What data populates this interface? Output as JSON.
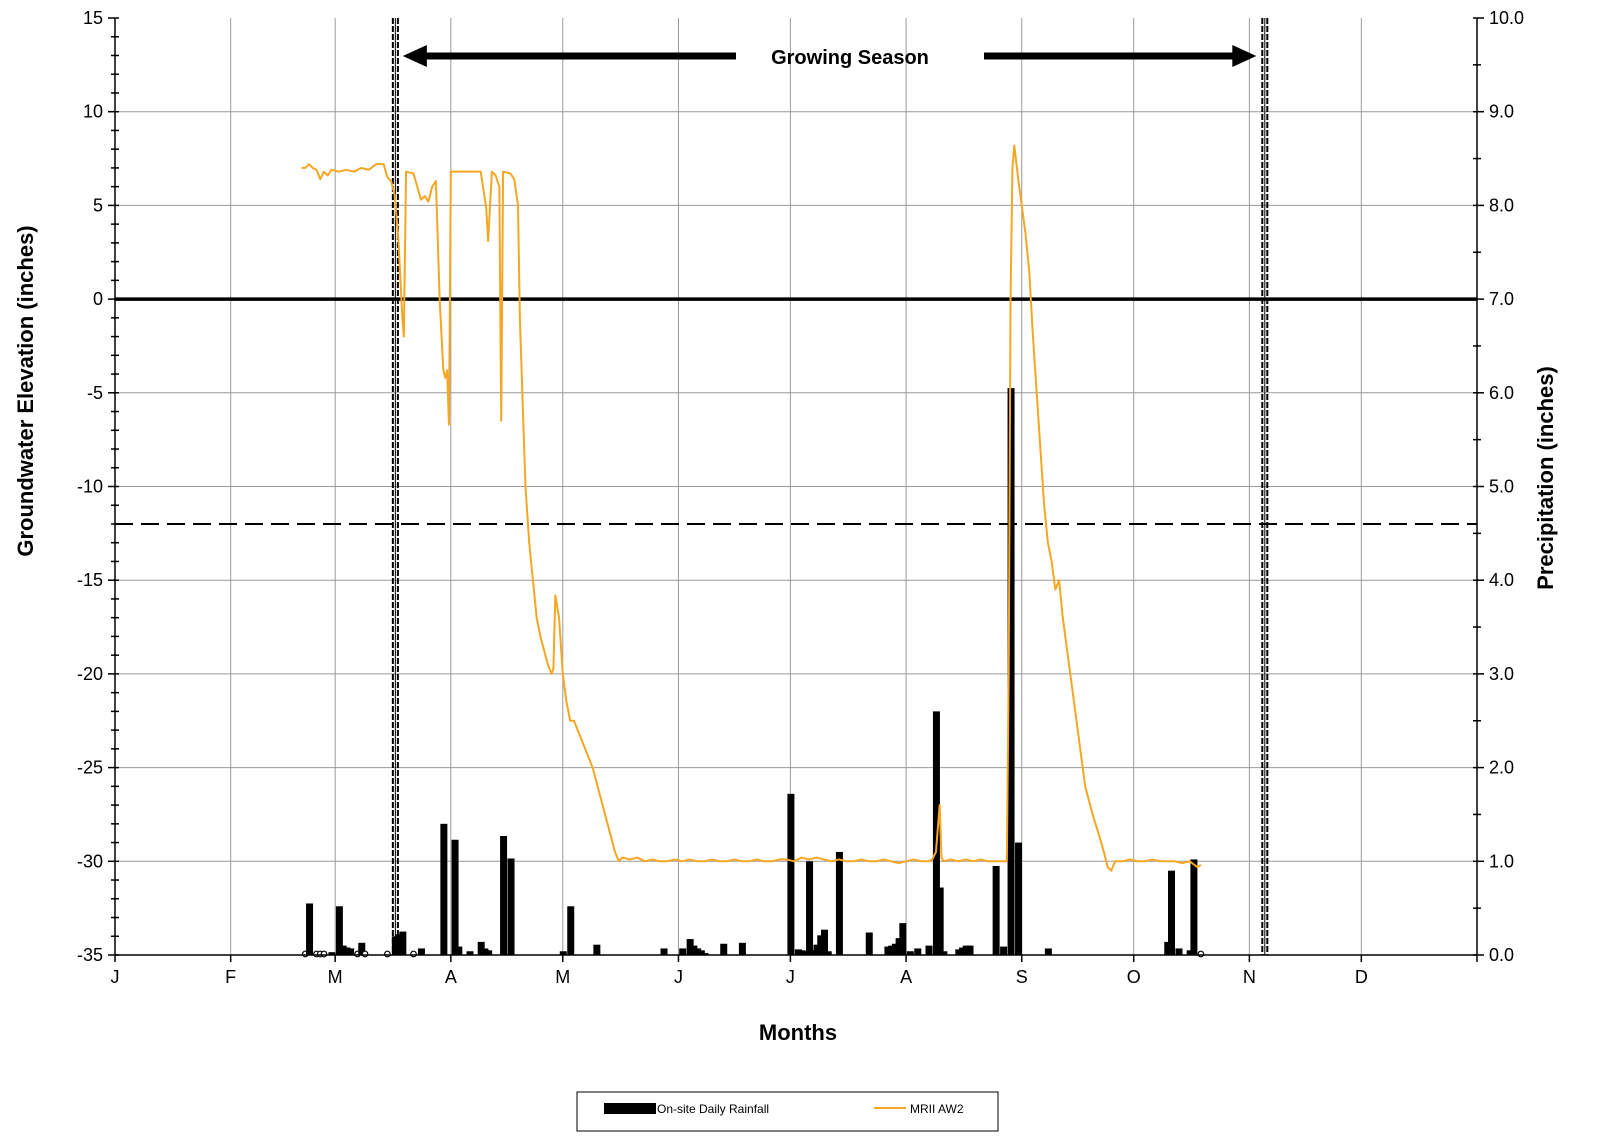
{
  "chart_data": {
    "type": "bar+line",
    "xlabel": "Months",
    "ylabel_left": "Groundwater Elevation (inches)",
    "ylabel_right": "Precipitation (inches)",
    "month_labels": [
      "J",
      "F",
      "M",
      "A",
      "M",
      "J",
      "J",
      "A",
      "S",
      "O",
      "N",
      "D"
    ],
    "left_axis": {
      "ylim": [
        -35,
        15
      ],
      "ticks": [
        "15",
        "10",
        "5",
        "0",
        "-5",
        "-10",
        "-15",
        "-20",
        "-25",
        "-30",
        "-35"
      ]
    },
    "right_axis": {
      "ylim": [
        0,
        10
      ],
      "ticks": [
        "10.0",
        "9.0",
        "8.0",
        "7.0",
        "6.0",
        "5.0",
        "4.0",
        "3.0",
        "2.0",
        "1.0",
        "0.0"
      ]
    },
    "grid": true,
    "annotation": {
      "text": "Growing Season",
      "start_day": 75,
      "end_day": 308
    },
    "reference_lines": {
      "zero": 0,
      "minus_12": -12
    },
    "growing_season_markers": [
      75,
      308
    ],
    "legend": {
      "position": "bottom-center",
      "entries": [
        {
          "label": "On-site Daily Rainfall",
          "color": "#000000"
        },
        {
          "label": "MRII AW2",
          "color": "#f5a623"
        }
      ]
    },
    "series": [
      {
        "name": "On-site Daily Rainfall",
        "type": "bar",
        "axis": "right",
        "color": "#000000",
        "x_unit": "day_of_year",
        "points": [
          [
            51,
            0.0
          ],
          [
            52,
            0.55
          ],
          [
            54,
            0.0
          ],
          [
            55,
            0.0
          ],
          [
            56,
            0.0
          ],
          [
            58,
            0.03
          ],
          [
            60,
            0.52
          ],
          [
            61,
            0.1
          ],
          [
            62,
            0.08
          ],
          [
            63,
            0.07
          ],
          [
            65,
            0.0
          ],
          [
            66,
            0.13
          ],
          [
            67,
            0.0
          ],
          [
            73,
            0.0
          ],
          [
            75,
            0.2
          ],
          [
            76,
            0.22
          ],
          [
            77,
            0.25
          ],
          [
            80,
            0.0
          ],
          [
            82,
            0.07
          ],
          [
            88,
            1.4
          ],
          [
            91,
            1.23
          ],
          [
            92,
            0.09
          ],
          [
            95,
            0.04
          ],
          [
            98,
            0.14
          ],
          [
            99,
            0.07
          ],
          [
            100,
            0.05
          ],
          [
            104,
            1.27
          ],
          [
            106,
            1.03
          ],
          [
            120,
            0.04
          ],
          [
            122,
            0.52
          ],
          [
            129,
            0.11
          ],
          [
            147,
            0.07
          ],
          [
            152,
            0.07
          ],
          [
            154,
            0.17
          ],
          [
            155,
            0.1
          ],
          [
            156,
            0.07
          ],
          [
            157,
            0.05
          ],
          [
            158,
            0.02
          ],
          [
            163,
            0.12
          ],
          [
            168,
            0.13
          ],
          [
            181,
            1.72
          ],
          [
            183,
            0.06
          ],
          [
            184,
            0.05
          ],
          [
            185,
            0.04
          ],
          [
            186,
            1.0
          ],
          [
            187,
            0.05
          ],
          [
            188,
            0.11
          ],
          [
            189,
            0.21
          ],
          [
            190,
            0.27
          ],
          [
            191,
            0.04
          ],
          [
            194,
            1.1
          ],
          [
            202,
            0.24
          ],
          [
            207,
            0.09
          ],
          [
            208,
            0.1
          ],
          [
            209,
            0.12
          ],
          [
            210,
            0.18
          ],
          [
            211,
            0.34
          ],
          [
            213,
            0.04
          ],
          [
            215,
            0.07
          ],
          [
            218,
            0.1
          ],
          [
            220,
            2.6
          ],
          [
            221,
            0.72
          ],
          [
            222,
            0.04
          ],
          [
            226,
            0.06
          ],
          [
            227,
            0.08
          ],
          [
            228,
            0.1
          ],
          [
            229,
            0.1
          ],
          [
            236,
            0.95
          ],
          [
            238,
            0.09
          ],
          [
            240,
            6.05
          ],
          [
            242,
            1.2
          ],
          [
            250,
            0.07
          ],
          [
            282,
            0.14
          ],
          [
            283,
            0.9
          ],
          [
            285,
            0.07
          ],
          [
            288,
            0.05
          ],
          [
            289,
            1.02
          ],
          [
            291,
            0.0
          ]
        ]
      },
      {
        "name": "MRII AW2",
        "type": "line",
        "axis": "left",
        "color": "#f5a623",
        "x_unit": "day_of_year",
        "points": [
          [
            50,
            7.0
          ],
          [
            51,
            7.0
          ],
          [
            52,
            7.2
          ],
          [
            53,
            7.0
          ],
          [
            54,
            6.9
          ],
          [
            55,
            6.4
          ],
          [
            56,
            6.8
          ],
          [
            57,
            6.6
          ],
          [
            58,
            6.9
          ],
          [
            60,
            6.8
          ],
          [
            62,
            6.9
          ],
          [
            64,
            6.8
          ],
          [
            66,
            7.0
          ],
          [
            68,
            6.9
          ],
          [
            70,
            7.2
          ],
          [
            72,
            7.2
          ],
          [
            73,
            6.5
          ],
          [
            74,
            6.3
          ],
          [
            75,
            5.5
          ],
          [
            76,
            3.0
          ],
          [
            76.5,
            1.0
          ],
          [
            77,
            -1.0
          ],
          [
            77.4,
            -2.0
          ],
          [
            78,
            6.8
          ],
          [
            80,
            6.7
          ],
          [
            81,
            6.0
          ],
          [
            82,
            5.3
          ],
          [
            83,
            5.5
          ],
          [
            84,
            5.2
          ],
          [
            85,
            6.0
          ],
          [
            86,
            6.3
          ],
          [
            87,
            0.0
          ],
          [
            88,
            -3.8
          ],
          [
            88.5,
            -4.2
          ],
          [
            89,
            -3.8
          ],
          [
            89.5,
            -6.7
          ],
          [
            90,
            6.8
          ],
          [
            92,
            6.8
          ],
          [
            94,
            6.8
          ],
          [
            96,
            6.8
          ],
          [
            98,
            6.8
          ],
          [
            99,
            5.5
          ],
          [
            99.5,
            4.8
          ],
          [
            100,
            3.1
          ],
          [
            101,
            6.8
          ],
          [
            102,
            6.6
          ],
          [
            103,
            6.0
          ],
          [
            103.5,
            -6.5
          ],
          [
            104,
            6.8
          ],
          [
            106,
            6.7
          ],
          [
            107,
            6.4
          ],
          [
            108,
            5.0
          ],
          [
            108.5,
            -1.0
          ],
          [
            109,
            -4.0
          ],
          [
            109.5,
            -7.0
          ],
          [
            110,
            -10.0
          ],
          [
            111,
            -13.0
          ],
          [
            112,
            -15.0
          ],
          [
            113,
            -17.0
          ],
          [
            114,
            -18.0
          ],
          [
            116,
            -19.5
          ],
          [
            117,
            -20.0
          ],
          [
            117.5,
            -19.7
          ],
          [
            118,
            -15.8
          ],
          [
            119,
            -17.0
          ],
          [
            120,
            -20.0
          ],
          [
            121,
            -21.5
          ],
          [
            122,
            -22.5
          ],
          [
            123,
            -22.5
          ],
          [
            124,
            -23.0
          ],
          [
            126,
            -24.0
          ],
          [
            128,
            -25.0
          ],
          [
            130,
            -26.5
          ],
          [
            132,
            -28.0
          ],
          [
            134,
            -29.5
          ],
          [
            135,
            -30.0
          ],
          [
            136,
            -29.8
          ],
          [
            138,
            -29.9
          ],
          [
            140,
            -29.8
          ],
          [
            142,
            -30.0
          ],
          [
            144,
            -29.9
          ],
          [
            146,
            -30.0
          ],
          [
            148,
            -30.0
          ],
          [
            150,
            -29.9
          ],
          [
            152,
            -30.0
          ],
          [
            154,
            -29.9
          ],
          [
            156,
            -30.0
          ],
          [
            158,
            -30.0
          ],
          [
            160,
            -29.9
          ],
          [
            162,
            -30.0
          ],
          [
            164,
            -30.0
          ],
          [
            166,
            -29.9
          ],
          [
            168,
            -30.0
          ],
          [
            170,
            -30.0
          ],
          [
            172,
            -29.9
          ],
          [
            174,
            -30.0
          ],
          [
            176,
            -30.0
          ],
          [
            178,
            -29.9
          ],
          [
            180,
            -29.9
          ],
          [
            182,
            -30.0
          ],
          [
            184,
            -29.8
          ],
          [
            186,
            -29.9
          ],
          [
            188,
            -29.8
          ],
          [
            190,
            -29.9
          ],
          [
            192,
            -30.0
          ],
          [
            194,
            -29.9
          ],
          [
            196,
            -30.0
          ],
          [
            198,
            -30.0
          ],
          [
            200,
            -29.9
          ],
          [
            202,
            -30.0
          ],
          [
            204,
            -30.0
          ],
          [
            206,
            -29.9
          ],
          [
            208,
            -30.0
          ],
          [
            210,
            -30.1
          ],
          [
            212,
            -30.0
          ],
          [
            214,
            -29.9
          ],
          [
            216,
            -30.0
          ],
          [
            218,
            -30.0
          ],
          [
            219,
            -29.9
          ],
          [
            220,
            -29.5
          ],
          [
            221,
            -27.0
          ],
          [
            221.5,
            -29.8
          ],
          [
            222,
            -30.0
          ],
          [
            224,
            -29.9
          ],
          [
            226,
            -30.0
          ],
          [
            228,
            -29.9
          ],
          [
            230,
            -30.0
          ],
          [
            232,
            -29.9
          ],
          [
            234,
            -30.0
          ],
          [
            236,
            -30.0
          ],
          [
            238,
            -30.0
          ],
          [
            239,
            -30.0
          ],
          [
            239.5,
            -20.0
          ],
          [
            240,
            0.0
          ],
          [
            240.5,
            7.0
          ],
          [
            241,
            8.2
          ],
          [
            242,
            6.5
          ],
          [
            243,
            5.0
          ],
          [
            244,
            3.5
          ],
          [
            245,
            1.5
          ],
          [
            246,
            -2.0
          ],
          [
            247,
            -5.0
          ],
          [
            248,
            -8.0
          ],
          [
            249,
            -11.0
          ],
          [
            250,
            -13.0
          ],
          [
            251,
            -14.0
          ],
          [
            252,
            -15.5
          ],
          [
            253,
            -15.0
          ],
          [
            254,
            -17.0
          ],
          [
            255,
            -18.5
          ],
          [
            256,
            -20.0
          ],
          [
            257,
            -21.5
          ],
          [
            258,
            -23.0
          ],
          [
            259,
            -24.5
          ],
          [
            260,
            -26.0
          ],
          [
            262,
            -27.5
          ],
          [
            264,
            -28.8
          ],
          [
            265,
            -29.5
          ],
          [
            266,
            -30.3
          ],
          [
            267,
            -30.5
          ],
          [
            268,
            -30.0
          ],
          [
            270,
            -30.0
          ],
          [
            272,
            -29.9
          ],
          [
            274,
            -30.0
          ],
          [
            276,
            -30.0
          ],
          [
            278,
            -29.9
          ],
          [
            280,
            -30.0
          ],
          [
            282,
            -30.0
          ],
          [
            284,
            -30.0
          ],
          [
            286,
            -30.1
          ],
          [
            288,
            -30.0
          ],
          [
            290,
            -30.3
          ],
          [
            291,
            -30.2
          ]
        ]
      }
    ]
  }
}
